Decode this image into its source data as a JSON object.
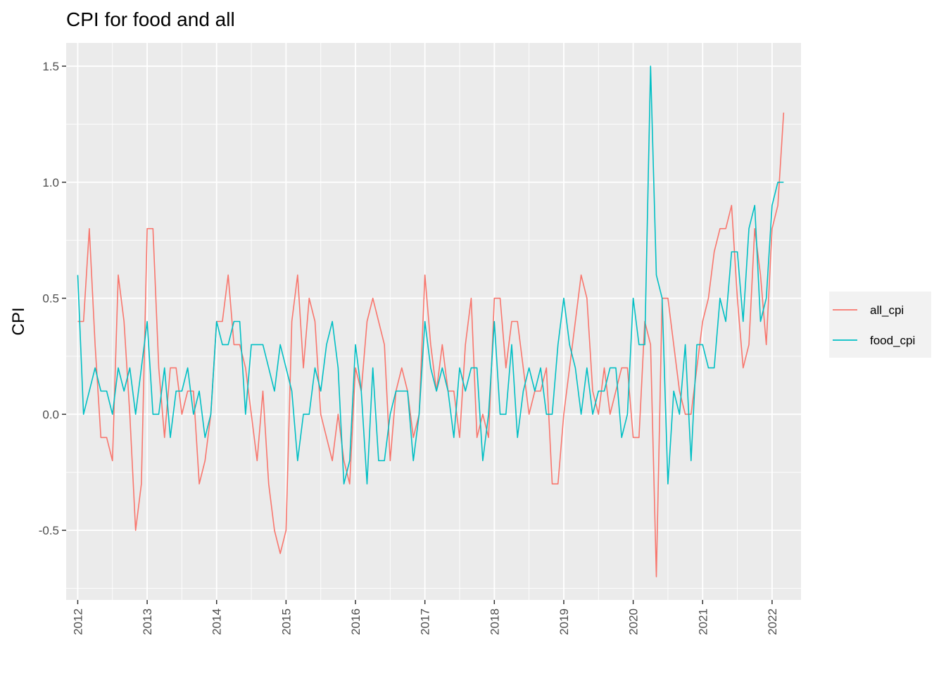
{
  "chart_data": {
    "type": "line",
    "title": "CPI for food and all",
    "xlabel": "",
    "ylabel": "CPI",
    "x_ticks": [
      "2012",
      "2013",
      "2014",
      "2015",
      "2016",
      "2017",
      "2018",
      "2019",
      "2020",
      "2021",
      "2022"
    ],
    "y_ticks": [
      "-0.5",
      "0.0",
      "0.5",
      "1.0",
      "1.5"
    ],
    "xlim": [
      "2011-11",
      "2022-06"
    ],
    "ylim": [
      -0.8,
      1.6
    ],
    "grid": true,
    "legend_position": "right",
    "x": [
      "2012-01",
      "2012-02",
      "2012-03",
      "2012-04",
      "2012-05",
      "2012-06",
      "2012-07",
      "2012-08",
      "2012-09",
      "2012-10",
      "2012-11",
      "2012-12",
      "2013-01",
      "2013-02",
      "2013-03",
      "2013-04",
      "2013-05",
      "2013-06",
      "2013-07",
      "2013-08",
      "2013-09",
      "2013-10",
      "2013-11",
      "2013-12",
      "2014-01",
      "2014-02",
      "2014-03",
      "2014-04",
      "2014-05",
      "2014-06",
      "2014-07",
      "2014-08",
      "2014-09",
      "2014-10",
      "2014-11",
      "2014-12",
      "2015-01",
      "2015-02",
      "2015-03",
      "2015-04",
      "2015-05",
      "2015-06",
      "2015-07",
      "2015-08",
      "2015-09",
      "2015-10",
      "2015-11",
      "2015-12",
      "2016-01",
      "2016-02",
      "2016-03",
      "2016-04",
      "2016-05",
      "2016-06",
      "2016-07",
      "2016-08",
      "2016-09",
      "2016-10",
      "2016-11",
      "2016-12",
      "2017-01",
      "2017-02",
      "2017-03",
      "2017-04",
      "2017-05",
      "2017-06",
      "2017-07",
      "2017-08",
      "2017-09",
      "2017-10",
      "2017-11",
      "2017-12",
      "2018-01",
      "2018-02",
      "2018-03",
      "2018-04",
      "2018-05",
      "2018-06",
      "2018-07",
      "2018-08",
      "2018-09",
      "2018-10",
      "2018-11",
      "2018-12",
      "2019-01",
      "2019-02",
      "2019-03",
      "2019-04",
      "2019-05",
      "2019-06",
      "2019-07",
      "2019-08",
      "2019-09",
      "2019-10",
      "2019-11",
      "2019-12",
      "2020-01",
      "2020-02",
      "2020-03",
      "2020-04",
      "2020-05",
      "2020-06",
      "2020-07",
      "2020-08",
      "2020-09",
      "2020-10",
      "2020-11",
      "2020-12",
      "2021-01",
      "2021-02",
      "2021-03",
      "2021-04",
      "2021-05",
      "2021-06",
      "2021-07",
      "2021-08",
      "2021-09",
      "2021-10",
      "2021-11",
      "2021-12",
      "2022-01",
      "2022-02",
      "2022-03"
    ],
    "series": [
      {
        "name": "all_cpi",
        "color": "#F8766D",
        "values": [
          0.4,
          0.4,
          0.8,
          0.3,
          -0.1,
          -0.1,
          -0.2,
          0.6,
          0.4,
          0.0,
          -0.5,
          -0.3,
          0.8,
          0.8,
          0.2,
          -0.1,
          0.2,
          0.2,
          0.0,
          0.1,
          0.1,
          -0.3,
          -0.2,
          0.0,
          0.4,
          0.4,
          0.6,
          0.3,
          0.3,
          0.2,
          0.0,
          -0.2,
          0.1,
          -0.3,
          -0.5,
          -0.6,
          -0.5,
          0.4,
          0.6,
          0.2,
          0.5,
          0.4,
          0.0,
          -0.1,
          -0.2,
          0.0,
          -0.2,
          -0.3,
          0.2,
          0.1,
          0.4,
          0.5,
          0.4,
          0.3,
          -0.2,
          0.1,
          0.2,
          0.1,
          -0.1,
          0.0,
          0.6,
          0.3,
          0.1,
          0.3,
          0.1,
          0.1,
          -0.1,
          0.3,
          0.5,
          -0.1,
          0.0,
          -0.1,
          0.5,
          0.5,
          0.2,
          0.4,
          0.4,
          0.2,
          0.0,
          0.1,
          0.1,
          0.2,
          -0.3,
          -0.3,
          0.0,
          0.2,
          0.4,
          0.6,
          0.5,
          0.1,
          0.0,
          0.2,
          0.0,
          0.1,
          0.2,
          0.2,
          -0.1,
          -0.1,
          0.4,
          0.3,
          -0.7,
          0.5,
          0.5,
          0.3,
          0.1,
          0.0,
          0.0,
          0.2,
          0.4,
          0.5,
          0.7,
          0.8,
          0.8,
          0.9,
          0.5,
          0.2,
          0.3,
          0.8,
          0.6,
          0.3,
          0.8,
          0.9,
          1.3
        ]
      },
      {
        "name": "food_cpi",
        "color": "#00BFC4",
        "values": [
          0.6,
          0.0,
          0.1,
          0.2,
          0.1,
          0.1,
          0.0,
          0.2,
          0.1,
          0.2,
          0.0,
          0.2,
          0.4,
          0.0,
          0.0,
          0.2,
          -0.1,
          0.1,
          0.1,
          0.2,
          0.0,
          0.1,
          -0.1,
          0.0,
          0.4,
          0.3,
          0.3,
          0.4,
          0.4,
          0.0,
          0.3,
          0.3,
          0.3,
          0.2,
          0.1,
          0.3,
          0.2,
          0.1,
          -0.2,
          0.0,
          0.0,
          0.2,
          0.1,
          0.3,
          0.4,
          0.2,
          -0.3,
          -0.2,
          0.3,
          0.1,
          -0.3,
          0.2,
          -0.2,
          -0.2,
          0.0,
          0.1,
          0.1,
          0.1,
          -0.2,
          0.0,
          0.4,
          0.2,
          0.1,
          0.2,
          0.1,
          -0.1,
          0.2,
          0.1,
          0.2,
          0.2,
          -0.2,
          0.0,
          0.4,
          0.0,
          0.0,
          0.3,
          -0.1,
          0.1,
          0.2,
          0.1,
          0.2,
          0.0,
          0.0,
          0.3,
          0.5,
          0.3,
          0.2,
          0.0,
          0.2,
          0.0,
          0.1,
          0.1,
          0.2,
          0.2,
          -0.1,
          0.0,
          0.5,
          0.3,
          0.3,
          1.5,
          0.6,
          0.5,
          -0.3,
          0.1,
          0.0,
          0.3,
          -0.2,
          0.3,
          0.3,
          0.2,
          0.2,
          0.5,
          0.4,
          0.7,
          0.7,
          0.4,
          0.8,
          0.9,
          0.4,
          0.5,
          0.9,
          1.0,
          1.0
        ]
      }
    ]
  }
}
